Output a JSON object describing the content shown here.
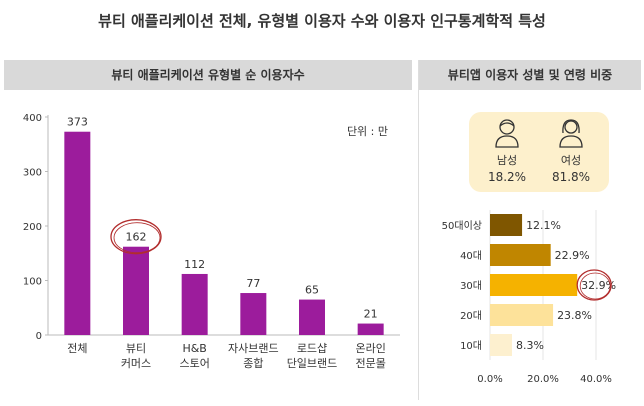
{
  "title": "뷰티 애플리케이션 전체, 유형별 이용자 수와 이용자 인구통계학적 특성",
  "left_panel": {
    "header": "뷰티 애플리케이션 유형별 순 이용자수",
    "unit": "단위 : 만"
  },
  "right_panel": {
    "header": "뷰티앱 이용자 성별 및 연령 비중",
    "male": {
      "label": "남성",
      "value": "18.2%"
    },
    "female": {
      "label": "여성",
      "value": "81.8%"
    }
  },
  "colors": {
    "bar": "#9c1c9c",
    "circle": "#b22d2d",
    "age": [
      "#7f5600",
      "#c08600",
      "#f5b200",
      "#fde29a",
      "#fdf0cf"
    ]
  },
  "chart_data": [
    {
      "type": "bar",
      "categories": [
        "전체",
        "뷰티\n커머스",
        "H&B\n스토어",
        "자사브랜드\n종합",
        "로드샵\n단일브랜드",
        "온라인\n전문몰"
      ],
      "values": [
        373,
        162,
        112,
        77,
        65,
        21
      ],
      "ylim": [
        0,
        400
      ],
      "yticks": [
        0,
        100,
        200,
        300,
        400
      ],
      "highlight_index": 1
    },
    {
      "type": "bar",
      "orientation": "horizontal",
      "categories": [
        "50대이상",
        "40대",
        "30대",
        "20대",
        "10대"
      ],
      "values": [
        12.1,
        22.9,
        32.9,
        23.8,
        8.3
      ],
      "value_labels": [
        "12.1%",
        "22.9%",
        "32.9%",
        "23.8%",
        "8.3%"
      ],
      "xlim": [
        0,
        40
      ],
      "xticks": [
        "0.0%",
        "20.0%",
        "40.0%"
      ],
      "highlight_index": 2
    }
  ]
}
